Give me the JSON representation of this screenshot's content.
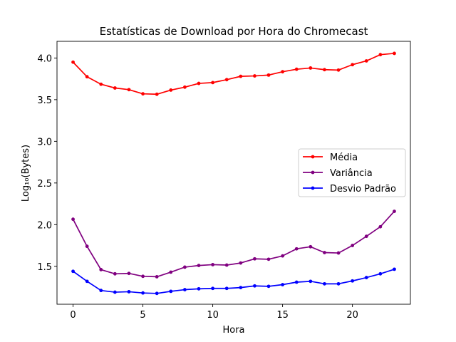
{
  "chart_data": {
    "type": "line",
    "title": "Estatísticas de Download por Hora do Chromecast",
    "xlabel": "Hora",
    "ylabel": "Log₁₀(Bytes)",
    "xlim": [
      -1.15,
      24.15
    ],
    "ylim": [
      1.045,
      4.2
    ],
    "xticks": [
      0,
      5,
      10,
      15,
      20
    ],
    "yticks": [
      1.5,
      2.0,
      2.5,
      3.0,
      3.5,
      4.0
    ],
    "ytick_labels": [
      "1.5",
      "2.0",
      "2.5",
      "3.0",
      "3.5",
      "4.0"
    ],
    "grid": false,
    "legend_position": "center-right",
    "x": [
      0,
      1,
      2,
      3,
      4,
      5,
      6,
      7,
      8,
      9,
      10,
      11,
      12,
      13,
      14,
      15,
      16,
      17,
      18,
      19,
      20,
      21,
      22,
      23
    ],
    "series": [
      {
        "name": "Média",
        "color": "#ff0000",
        "values": [
          3.95,
          3.775,
          3.685,
          3.64,
          3.62,
          3.57,
          3.565,
          3.615,
          3.65,
          3.695,
          3.705,
          3.74,
          3.78,
          3.785,
          3.795,
          3.835,
          3.865,
          3.88,
          3.86,
          3.855,
          3.92,
          3.965,
          4.04,
          4.055
        ]
      },
      {
        "name": "Variância",
        "color": "#800080",
        "values": [
          2.065,
          1.74,
          1.46,
          1.41,
          1.415,
          1.38,
          1.375,
          1.43,
          1.49,
          1.51,
          1.52,
          1.515,
          1.54,
          1.59,
          1.585,
          1.625,
          1.71,
          1.735,
          1.665,
          1.66,
          1.75,
          1.86,
          1.975,
          2.16
        ]
      },
      {
        "name": "Desvio Padrão",
        "color": "#0000ff",
        "values": [
          1.44,
          1.32,
          1.21,
          1.19,
          1.195,
          1.18,
          1.175,
          1.2,
          1.22,
          1.23,
          1.235,
          1.235,
          1.245,
          1.265,
          1.26,
          1.28,
          1.31,
          1.32,
          1.29,
          1.29,
          1.325,
          1.365,
          1.41,
          1.465
        ]
      }
    ]
  }
}
